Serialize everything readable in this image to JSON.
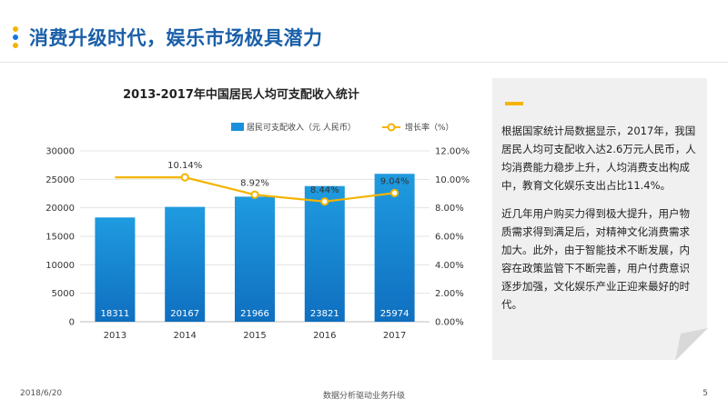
{
  "header": {
    "title": "消费升级时代，娱乐市场极具潜力",
    "dot_colors": [
      "#f4b400",
      "#1a73e8",
      "#f4b400"
    ]
  },
  "note": {
    "paragraph1": "根据国家统计局数据显示，2017年，我国居民人均可支配收入达2.6万元人民币，人均消费能力稳步上升，人均消费支出构成中，教育文化娱乐支出占比11.4%。",
    "paragraph2": "近几年用户购买力得到极大提升，用户物质需求得到满足后，对精神文化消费需求加大。此外，由于智能技术不断发展，内容在政策监管下不断完善，用户付费意识逐步加强，文化娱乐产业正迎来最好的时代。",
    "accent_color": "#f4b400"
  },
  "footer": {
    "date": "2018/6/20",
    "subtitle": "数据分析驱动业务升级",
    "page": "5"
  },
  "chart_data": {
    "type": "bar",
    "title": "2013-2017年中国居民人均可支配收入统计",
    "categories": [
      "2013",
      "2014",
      "2015",
      "2016",
      "2017"
    ],
    "series": [
      {
        "name": "居民可支配收入（元 人民币）",
        "kind": "bar",
        "axis": "left",
        "color": "#1a8fdb",
        "values": [
          18311,
          20167,
          21966,
          23821,
          25974
        ],
        "labels": [
          "18311",
          "20167",
          "21966",
          "23821",
          "25974"
        ]
      },
      {
        "name": "增长率（%）",
        "kind": "line",
        "axis": "right",
        "color": "#f4b400",
        "values": [
          10.14,
          10.14,
          8.92,
          8.44,
          9.04
        ],
        "labels": [
          "",
          "10.14%",
          "8.92%",
          "8.44%",
          "9.04%"
        ]
      }
    ],
    "y_left": {
      "min": 0,
      "max": 30000,
      "ticks": [
        "0",
        "5000",
        "10000",
        "15000",
        "20000",
        "25000",
        "30000"
      ]
    },
    "y_right": {
      "min": 0,
      "max": 12,
      "ticks": [
        "0.00%",
        "2.00%",
        "4.00%",
        "6.00%",
        "8.00%",
        "10.00%",
        "12.00%"
      ]
    },
    "grid": true,
    "legend_position": "top"
  }
}
